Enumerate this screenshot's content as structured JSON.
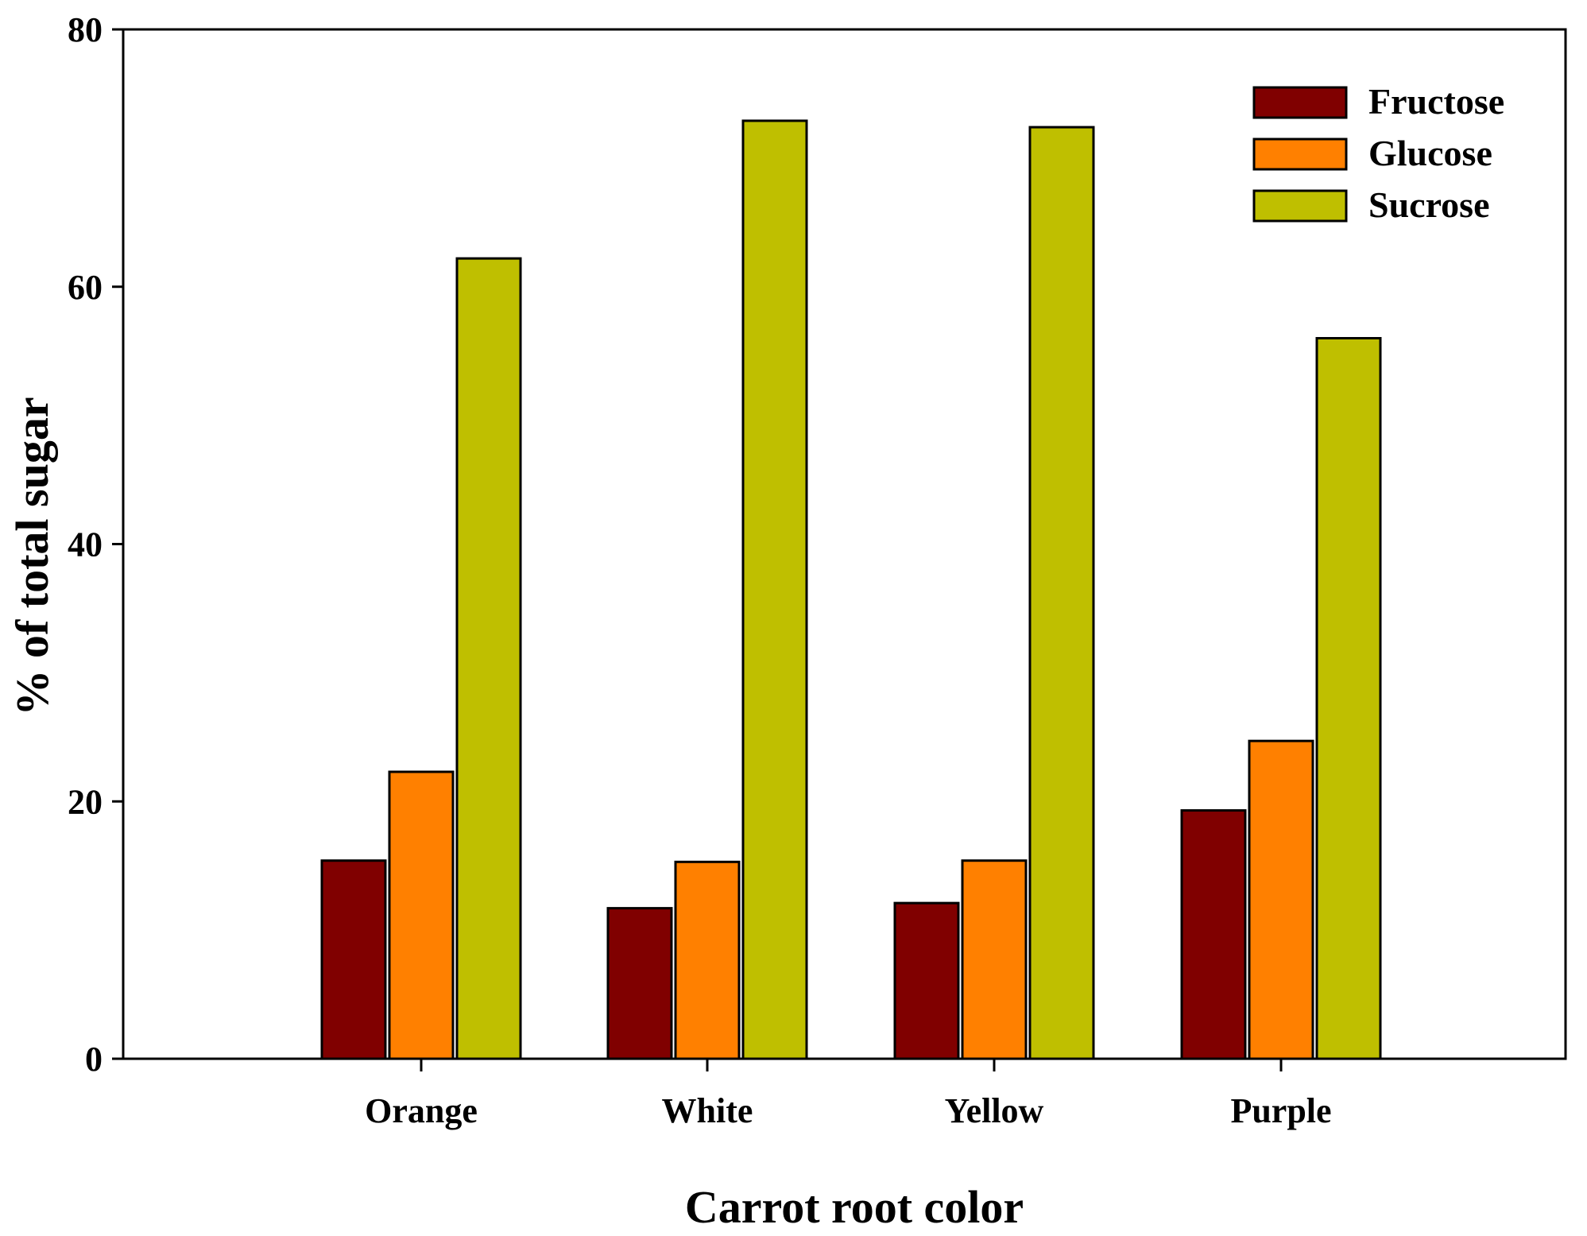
{
  "chart_data": {
    "type": "bar",
    "title": "",
    "xlabel": "Carrot root color",
    "ylabel": "% of total sugar",
    "ylim": [
      0,
      80
    ],
    "yticks": [
      0,
      20,
      40,
      60,
      80
    ],
    "ytick_labels": [
      "0",
      "20",
      "40",
      "60",
      "80"
    ],
    "grid": false,
    "legend_position": "top-right",
    "categories": [
      "Orange",
      "White",
      "Yellow",
      "Purple"
    ],
    "series": [
      {
        "name": "Fructose",
        "color": "#800000",
        "values": [
          15.4,
          11.7,
          12.1,
          19.3
        ]
      },
      {
        "name": "Glucose",
        "color": "#FF8000",
        "values": [
          22.3,
          15.3,
          15.4,
          24.7
        ]
      },
      {
        "name": "Sucrose",
        "color": "#BFBF00",
        "values": [
          62.2,
          72.9,
          72.4,
          56.0
        ]
      }
    ]
  }
}
